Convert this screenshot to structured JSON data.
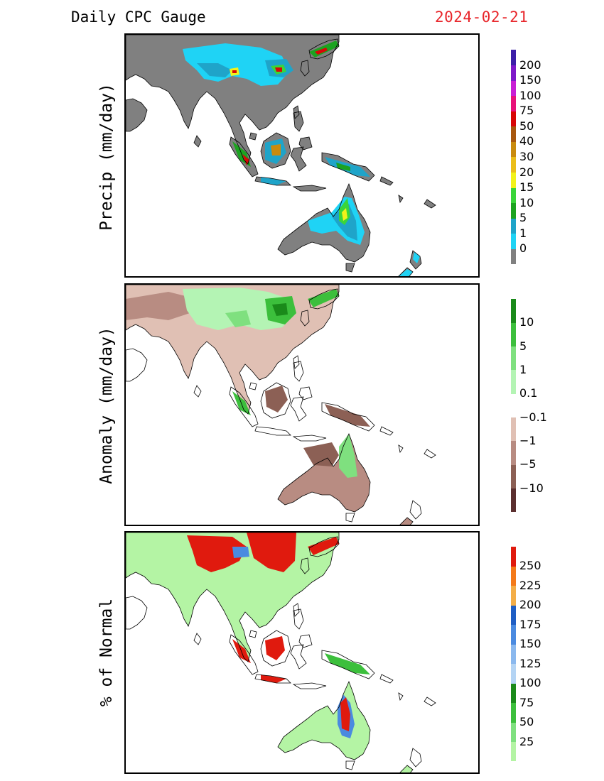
{
  "header": {
    "title": "Daily CPC Gauge",
    "date": "2024-02-21"
  },
  "panels": [
    {
      "key": "precip",
      "label": "Precip (mm/day)",
      "colorbar": {
        "colors": [
          "#808080",
          "#1fd3f5",
          "#1fa4c9",
          "#1ca320",
          "#3ad53a",
          "#f2f21a",
          "#ebbe1a",
          "#c98b0e",
          "#a8570e",
          "#d80606",
          "#e8127a",
          "#c81fd5",
          "#7e19c9",
          "#3c1fa8"
        ],
        "labels": [
          "0",
          "1",
          "5",
          "10",
          "15",
          "20",
          "30",
          "40",
          "50",
          "75",
          "100",
          "150",
          "200"
        ]
      }
    },
    {
      "key": "anomaly",
      "label": "Anomaly (mm/day)",
      "colorbar": {
        "colors": [
          "#5b2f2f",
          "#8c6055",
          "#b88c82",
          "#e0c0b4",
          "#ffffff",
          "#b4f4b4",
          "#7fe07f",
          "#3cbf3c",
          "#1a8a1a"
        ],
        "labels": [
          "−10",
          "−5",
          "−1",
          "−0.1",
          "0.1",
          "1",
          "5",
          "10"
        ]
      }
    },
    {
      "key": "pct",
      "label": "% of Normal",
      "colorbar": {
        "colors": [
          "#b4f4a4",
          "#7fe07f",
          "#3cbf3c",
          "#1a8a1a",
          "#b4d4f4",
          "#8ab8ee",
          "#4a8ae0",
          "#1f5ec4",
          "#f4ae48",
          "#f47a1a",
          "#e01a0e"
        ],
        "labels": [
          "25",
          "50",
          "75",
          "100",
          "125",
          "150",
          "175",
          "200",
          "225",
          "250"
        ]
      }
    }
  ],
  "map": {
    "land_color": "#808080",
    "coast_color": "#000000"
  }
}
